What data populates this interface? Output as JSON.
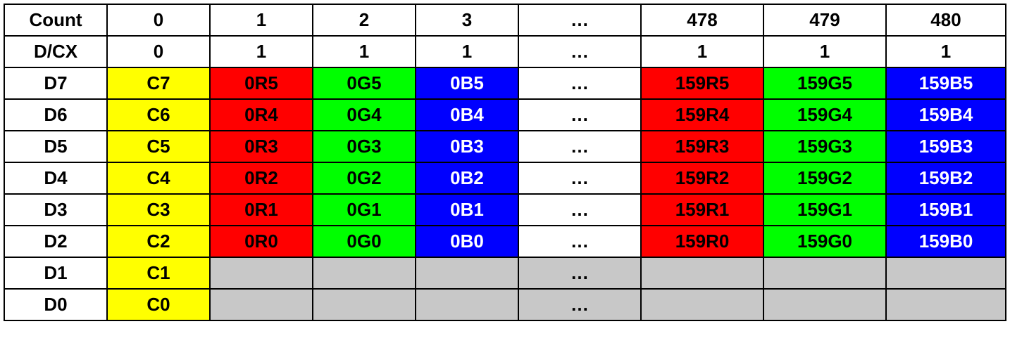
{
  "colors": {
    "yellow": "#ffff00",
    "red": "#ff0000",
    "green": "#00ff00",
    "blue": "#0000ff",
    "gray": "#c8c8c8",
    "border": "#000000"
  },
  "table": {
    "rows": [
      {
        "label": "Count",
        "cells": [
          {
            "text": "0",
            "color": "white"
          },
          {
            "text": "1",
            "color": "white"
          },
          {
            "text": "2",
            "color": "white"
          },
          {
            "text": "3",
            "color": "white"
          },
          {
            "text": "…",
            "color": "white"
          },
          {
            "text": "478",
            "color": "white"
          },
          {
            "text": "479",
            "color": "white"
          },
          {
            "text": "480",
            "color": "white"
          }
        ]
      },
      {
        "label": "D/CX",
        "cells": [
          {
            "text": "0",
            "color": "white"
          },
          {
            "text": "1",
            "color": "white"
          },
          {
            "text": "1",
            "color": "white"
          },
          {
            "text": "1",
            "color": "white"
          },
          {
            "text": "…",
            "color": "white"
          },
          {
            "text": "1",
            "color": "white"
          },
          {
            "text": "1",
            "color": "white"
          },
          {
            "text": "1",
            "color": "white"
          }
        ]
      },
      {
        "label": "D7",
        "cells": [
          {
            "text": "C7",
            "color": "yellow"
          },
          {
            "text": "0R5",
            "color": "red"
          },
          {
            "text": "0G5",
            "color": "green"
          },
          {
            "text": "0B5",
            "color": "blue"
          },
          {
            "text": "…",
            "color": "white"
          },
          {
            "text": "159R5",
            "color": "red"
          },
          {
            "text": "159G5",
            "color": "green"
          },
          {
            "text": "159B5",
            "color": "blue"
          }
        ]
      },
      {
        "label": "D6",
        "cells": [
          {
            "text": "C6",
            "color": "yellow"
          },
          {
            "text": "0R4",
            "color": "red"
          },
          {
            "text": "0G4",
            "color": "green"
          },
          {
            "text": "0B4",
            "color": "blue"
          },
          {
            "text": "…",
            "color": "white"
          },
          {
            "text": "159R4",
            "color": "red"
          },
          {
            "text": "159G4",
            "color": "green"
          },
          {
            "text": "159B4",
            "color": "blue"
          }
        ]
      },
      {
        "label": "D5",
        "cells": [
          {
            "text": "C5",
            "color": "yellow"
          },
          {
            "text": "0R3",
            "color": "red"
          },
          {
            "text": "0G3",
            "color": "green"
          },
          {
            "text": "0B3",
            "color": "blue"
          },
          {
            "text": "…",
            "color": "white"
          },
          {
            "text": "159R3",
            "color": "red"
          },
          {
            "text": "159G3",
            "color": "green"
          },
          {
            "text": "159B3",
            "color": "blue"
          }
        ]
      },
      {
        "label": "D4",
        "cells": [
          {
            "text": "C4",
            "color": "yellow"
          },
          {
            "text": "0R2",
            "color": "red"
          },
          {
            "text": "0G2",
            "color": "green"
          },
          {
            "text": "0B2",
            "color": "blue"
          },
          {
            "text": "…",
            "color": "white"
          },
          {
            "text": "159R2",
            "color": "red"
          },
          {
            "text": "159G2",
            "color": "green"
          },
          {
            "text": "159B2",
            "color": "blue"
          }
        ]
      },
      {
        "label": "D3",
        "cells": [
          {
            "text": "C3",
            "color": "yellow"
          },
          {
            "text": "0R1",
            "color": "red"
          },
          {
            "text": "0G1",
            "color": "green"
          },
          {
            "text": "0B1",
            "color": "blue"
          },
          {
            "text": "…",
            "color": "white"
          },
          {
            "text": "159R1",
            "color": "red"
          },
          {
            "text": "159G1",
            "color": "green"
          },
          {
            "text": "159B1",
            "color": "blue"
          }
        ]
      },
      {
        "label": "D2",
        "cells": [
          {
            "text": "C2",
            "color": "yellow"
          },
          {
            "text": "0R0",
            "color": "red"
          },
          {
            "text": "0G0",
            "color": "green"
          },
          {
            "text": "0B0",
            "color": "blue"
          },
          {
            "text": "…",
            "color": "white"
          },
          {
            "text": "159R0",
            "color": "red"
          },
          {
            "text": "159G0",
            "color": "green"
          },
          {
            "text": "159B0",
            "color": "blue"
          }
        ]
      },
      {
        "label": "D1",
        "cells": [
          {
            "text": "C1",
            "color": "yellow"
          },
          {
            "text": "",
            "color": "gray"
          },
          {
            "text": "",
            "color": "gray"
          },
          {
            "text": "",
            "color": "gray"
          },
          {
            "text": "…",
            "color": "gray"
          },
          {
            "text": "",
            "color": "gray"
          },
          {
            "text": "",
            "color": "gray"
          },
          {
            "text": "",
            "color": "gray"
          }
        ]
      },
      {
        "label": "D0",
        "cells": [
          {
            "text": "C0",
            "color": "yellow"
          },
          {
            "text": "",
            "color": "gray"
          },
          {
            "text": "",
            "color": "gray"
          },
          {
            "text": "",
            "color": "gray"
          },
          {
            "text": "…",
            "color": "gray"
          },
          {
            "text": "",
            "color": "gray"
          },
          {
            "text": "",
            "color": "gray"
          },
          {
            "text": "",
            "color": "gray"
          }
        ]
      }
    ]
  }
}
